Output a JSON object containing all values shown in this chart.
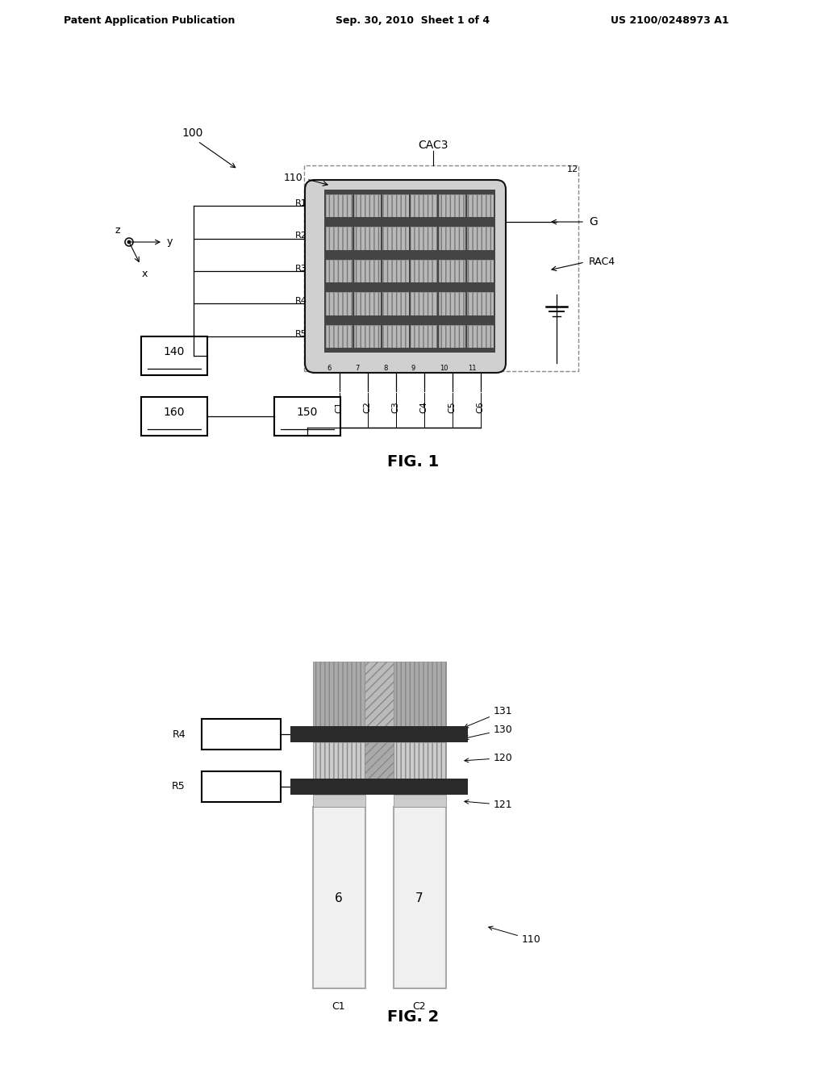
{
  "bg_color": "#ffffff",
  "header_left": "Patent Application Publication",
  "header_center": "Sep. 30, 2010  Sheet 1 of 4",
  "header_right": "US 2100/0248973 A1",
  "fig1_label": "FIG. 1",
  "fig2_label": "FIG. 2",
  "gray_light": "#cccccc",
  "gray_mid": "#888888",
  "gray_dark": "#555555",
  "black": "#111111",
  "white": "#ffffff"
}
